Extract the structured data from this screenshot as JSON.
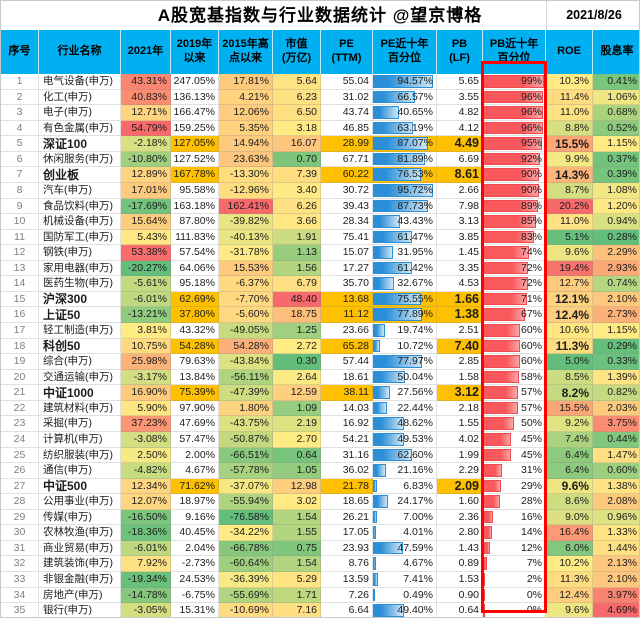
{
  "colors": {
    "header_bg": "#00B0F0",
    "index_highlight": "#FFC000",
    "scale_green": "#63BE7B",
    "scale_mid": "#FFEB84",
    "scale_red": "#F8696B",
    "pe_bar_blue": "#2B8FD8",
    "pb_bar_red": "#F9595C",
    "highlight_box_red": "#FE0000",
    "serial_gray": "#7F7F7F"
  },
  "scales": {
    "y2021": {
      "min": -20.27,
      "mid": 3.81,
      "max": 54.79
    },
    "since2015": {
      "min": -76.58,
      "mid": -34.22,
      "max": 162.41
    },
    "mcap": {
      "min": 0.3,
      "mid": 2.72,
      "max": 48.4
    },
    "roe": {
      "min": 5.0,
      "mid": 10.2,
      "max": 20.2
    },
    "div": {
      "min": 0.28,
      "mid": 1.15,
      "max": 4.69
    }
  },
  "chart_data": {
    "type": "table",
    "title": "A股宽基指数与行业数据统计 @望京博格",
    "date": "2021/8/26",
    "columns": [
      {
        "label": "序号"
      },
      {
        "label": "行业名称"
      },
      {
        "label": "2021年"
      },
      {
        "label": "2019年\n以来"
      },
      {
        "label": "2015年高\n点以来"
      },
      {
        "label": "市值\n(万亿)"
      },
      {
        "label": "PE\n(TTM)"
      },
      {
        "label": "PE近十年\n百分位"
      },
      {
        "label": "PB\n(LF)"
      },
      {
        "label": "PB近十年\n百分位"
      },
      {
        "label": "ROE"
      },
      {
        "label": "股息率"
      }
    ],
    "rows": [
      {
        "no": 1,
        "name": "电气设备(申万)",
        "y2021": 43.31,
        "since2019": 247.05,
        "since2015": 17.81,
        "mcap": 5.64,
        "pe": 55.04,
        "pe_pct": 94.57,
        "pb": 5.65,
        "pb_pct": 99,
        "roe": 10.3,
        "div": 0.41,
        "index": false,
        "pe_pct_gold": false
      },
      {
        "no": 2,
        "name": "化工(申万)",
        "y2021": 40.83,
        "since2019": 136.13,
        "since2015": 4.21,
        "mcap": 6.23,
        "pe": 31.02,
        "pe_pct": 66.57,
        "pb": 3.55,
        "pb_pct": 96,
        "roe": 11.4,
        "div": 1.06,
        "index": false,
        "pe_pct_gold": false
      },
      {
        "no": 3,
        "name": "电子(申万)",
        "y2021": 12.71,
        "since2019": 166.47,
        "since2015": 12.06,
        "mcap": 6.5,
        "pe": 43.74,
        "pe_pct": 40.65,
        "pb": 4.82,
        "pb_pct": 96,
        "roe": 11.0,
        "div": 0.68,
        "index": false,
        "pe_pct_gold": false
      },
      {
        "no": 4,
        "name": "有色金属(申万)",
        "y2021": 54.79,
        "since2019": 159.25,
        "since2015": 5.35,
        "mcap": 3.18,
        "pe": 46.85,
        "pe_pct": 63.19,
        "pb": 4.12,
        "pb_pct": 96,
        "roe": 8.8,
        "div": 0.52,
        "index": false,
        "pe_pct_gold": false
      },
      {
        "no": 5,
        "name": "深证100",
        "y2021": -2.18,
        "since2019": 127.05,
        "since2015": 14.94,
        "mcap": 16.07,
        "pe": 28.99,
        "pe_pct": 87.07,
        "pb": 4.49,
        "pb_pct": 95,
        "roe": 15.5,
        "div": 1.15,
        "index": true,
        "pe_pct_gold": true
      },
      {
        "no": 6,
        "name": "休闲服务(申万)",
        "y2021": -10.8,
        "since2019": 127.52,
        "since2015": 23.63,
        "mcap": 0.7,
        "pe": 67.71,
        "pe_pct": 81.89,
        "pb": 6.69,
        "pb_pct": 92,
        "roe": 9.9,
        "div": 0.37,
        "index": false,
        "pe_pct_gold": false
      },
      {
        "no": 7,
        "name": "创业板",
        "y2021": 12.89,
        "since2019": 167.78,
        "since2015": -13.3,
        "mcap": 7.39,
        "pe": 60.22,
        "pe_pct": 76.53,
        "pb": 8.61,
        "pb_pct": 90,
        "roe": 14.3,
        "div": 0.39,
        "index": true,
        "pe_pct_gold": true
      },
      {
        "no": 8,
        "name": "汽车(申万)",
        "y2021": 17.01,
        "since2019": 95.58,
        "since2015": -12.96,
        "mcap": 3.4,
        "pe": 30.72,
        "pe_pct": 95.72,
        "pb": 2.66,
        "pb_pct": 90,
        "roe": 8.7,
        "div": 1.08,
        "index": false,
        "pe_pct_gold": false
      },
      {
        "no": 9,
        "name": "食品饮料(申万)",
        "y2021": -17.69,
        "since2019": 163.18,
        "since2015": 162.41,
        "mcap": 6.26,
        "pe": 39.43,
        "pe_pct": 87.73,
        "pb": 7.98,
        "pb_pct": 89,
        "roe": 20.2,
        "div": 1.2,
        "index": false,
        "pe_pct_gold": false
      },
      {
        "no": 10,
        "name": "机械设备(申万)",
        "y2021": 15.64,
        "since2019": 87.8,
        "since2015": -39.82,
        "mcap": 3.66,
        "pe": 28.34,
        "pe_pct": 43.43,
        "pb": 3.13,
        "pb_pct": 85,
        "roe": 11.0,
        "div": 0.94,
        "index": false,
        "pe_pct_gold": false
      },
      {
        "no": 11,
        "name": "国防军工(申万)",
        "y2021": 5.43,
        "since2019": 111.83,
        "since2015": -40.13,
        "mcap": 1.91,
        "pe": 75.41,
        "pe_pct": 61.47,
        "pb": 3.85,
        "pb_pct": 83,
        "roe": 5.1,
        "div": 0.28,
        "index": false,
        "pe_pct_gold": false
      },
      {
        "no": 12,
        "name": "钢铁(申万)",
        "y2021": 53.38,
        "since2019": 57.54,
        "since2015": -31.78,
        "mcap": 1.13,
        "pe": 15.07,
        "pe_pct": 31.95,
        "pb": 1.45,
        "pb_pct": 74,
        "roe": 9.6,
        "div": 2.29,
        "index": false,
        "pe_pct_gold": false
      },
      {
        "no": 13,
        "name": "家用电器(申万)",
        "y2021": -20.27,
        "since2019": 64.06,
        "since2015": 15.53,
        "mcap": 1.56,
        "pe": 17.27,
        "pe_pct": 61.42,
        "pb": 3.35,
        "pb_pct": 72,
        "roe": 19.4,
        "div": 2.93,
        "index": false,
        "pe_pct_gold": false
      },
      {
        "no": 14,
        "name": "医药生物(申万)",
        "y2021": -5.61,
        "since2019": 95.18,
        "since2015": -6.37,
        "mcap": 6.79,
        "pe": 35.7,
        "pe_pct": 32.67,
        "pb": 4.53,
        "pb_pct": 72,
        "roe": 12.7,
        "div": 0.74,
        "index": false,
        "pe_pct_gold": false
      },
      {
        "no": 15,
        "name": "沪深300",
        "y2021": -6.01,
        "since2019": 62.69,
        "since2015": -7.7,
        "mcap": 48.4,
        "pe": 13.68,
        "pe_pct": 75.55,
        "pb": 1.66,
        "pb_pct": 71,
        "roe": 12.1,
        "div": 2.1,
        "index": true,
        "pe_pct_gold": true
      },
      {
        "no": 16,
        "name": "上证50",
        "y2021": -13.21,
        "since2019": 37.8,
        "since2015": -5.6,
        "mcap": 18.75,
        "pe": 11.12,
        "pe_pct": 77.89,
        "pb": 1.38,
        "pb_pct": 67,
        "roe": 12.4,
        "div": 2.73,
        "index": true,
        "pe_pct_gold": true
      },
      {
        "no": 17,
        "name": "轻工制造(申万)",
        "y2021": 3.81,
        "since2019": 43.32,
        "since2015": -49.05,
        "mcap": 1.25,
        "pe": 23.66,
        "pe_pct": 19.74,
        "pb": 2.51,
        "pb_pct": 60,
        "roe": 10.6,
        "div": 1.15,
        "index": false,
        "pe_pct_gold": false
      },
      {
        "no": 18,
        "name": "科创50",
        "y2021": 10.75,
        "since2019": 54.28,
        "since2015": 54.28,
        "mcap": 2.72,
        "pe": 65.28,
        "pe_pct": 10.72,
        "pb": 7.4,
        "pb_pct": 60,
        "roe": 11.3,
        "div": 0.29,
        "index": true,
        "pe_pct_gold": false
      },
      {
        "no": 19,
        "name": "综合(申万)",
        "y2021": 25.98,
        "since2019": 79.63,
        "since2015": -43.84,
        "mcap": 0.3,
        "pe": 57.44,
        "pe_pct": 77.97,
        "pb": 2.85,
        "pb_pct": 60,
        "roe": 5.0,
        "div": 0.33,
        "index": false,
        "pe_pct_gold": false
      },
      {
        "no": 20,
        "name": "交通运输(申万)",
        "y2021": -3.17,
        "since2019": 13.84,
        "since2015": -56.11,
        "mcap": 2.64,
        "pe": 18.61,
        "pe_pct": 50.04,
        "pb": 1.58,
        "pb_pct": 58,
        "roe": 8.5,
        "div": 1.39,
        "index": false,
        "pe_pct_gold": false
      },
      {
        "no": 21,
        "name": "中证1000",
        "y2021": 16.9,
        "since2019": 75.39,
        "since2015": -47.39,
        "mcap": 12.59,
        "pe": 38.11,
        "pe_pct": 27.56,
        "pb": 3.12,
        "pb_pct": 57,
        "roe": 8.2,
        "div": 0.82,
        "index": true,
        "pe_pct_gold": false
      },
      {
        "no": 22,
        "name": "建筑材料(申万)",
        "y2021": 5.9,
        "since2019": 97.9,
        "since2015": 1.8,
        "mcap": 1.09,
        "pe": 14.03,
        "pe_pct": 22.44,
        "pb": 2.18,
        "pb_pct": 57,
        "roe": 15.5,
        "div": 2.03,
        "index": false,
        "pe_pct_gold": false
      },
      {
        "no": 23,
        "name": "采掘(申万)",
        "y2021": 37.23,
        "since2019": 47.69,
        "since2015": -43.75,
        "mcap": 2.19,
        "pe": 16.92,
        "pe_pct": 48.62,
        "pb": 1.55,
        "pb_pct": 50,
        "roe": 9.2,
        "div": 3.75,
        "index": false,
        "pe_pct_gold": false
      },
      {
        "no": 24,
        "name": "计算机(申万)",
        "y2021": -3.08,
        "since2019": 57.47,
        "since2015": -50.87,
        "mcap": 2.7,
        "pe": 54.21,
        "pe_pct": 49.53,
        "pb": 4.02,
        "pb_pct": 45,
        "roe": 7.4,
        "div": 0.44,
        "index": false,
        "pe_pct_gold": false
      },
      {
        "no": 25,
        "name": "纺织服装(申万)",
        "y2021": 2.5,
        "since2019": 2.0,
        "since2015": -66.51,
        "mcap": 0.64,
        "pe": 31.16,
        "pe_pct": 62.6,
        "pb": 1.99,
        "pb_pct": 45,
        "roe": 6.4,
        "div": 1.47,
        "index": false,
        "pe_pct_gold": false
      },
      {
        "no": 26,
        "name": "通信(申万)",
        "y2021": -4.82,
        "since2019": 4.67,
        "since2015": -57.78,
        "mcap": 1.05,
        "pe": 36.02,
        "pe_pct": 21.16,
        "pb": 2.29,
        "pb_pct": 31,
        "roe": 6.4,
        "div": 0.6,
        "index": false,
        "pe_pct_gold": false
      },
      {
        "no": 27,
        "name": "中证500",
        "y2021": 12.34,
        "since2019": 71.62,
        "since2015": -37.07,
        "mcap": 12.98,
        "pe": 21.78,
        "pe_pct": 6.83,
        "pb": 2.09,
        "pb_pct": 29,
        "roe": 9.6,
        "div": 1.38,
        "index": true,
        "pe_pct_gold": false
      },
      {
        "no": 28,
        "name": "公用事业(申万)",
        "y2021": 12.07,
        "since2019": 18.97,
        "since2015": -55.94,
        "mcap": 3.02,
        "pe": 18.65,
        "pe_pct": 24.17,
        "pb": 1.6,
        "pb_pct": 28,
        "roe": 8.6,
        "div": 2.08,
        "index": false,
        "pe_pct_gold": false
      },
      {
        "no": 29,
        "name": "传媒(申万)",
        "y2021": -16.5,
        "since2019": 9.16,
        "since2015": -76.58,
        "mcap": 1.54,
        "pe": 26.21,
        "pe_pct": 7.0,
        "pb": 2.36,
        "pb_pct": 16,
        "roe": 9.0,
        "div": 0.96,
        "index": false,
        "pe_pct_gold": false
      },
      {
        "no": 30,
        "name": "农林牧渔(申万)",
        "y2021": -18.36,
        "since2019": 40.45,
        "since2015": -34.22,
        "mcap": 1.55,
        "pe": 17.05,
        "pe_pct": 4.01,
        "pb": 2.8,
        "pb_pct": 14,
        "roe": 16.4,
        "div": 1.33,
        "index": false,
        "pe_pct_gold": false
      },
      {
        "no": 31,
        "name": "商业贸易(申万)",
        "y2021": -6.01,
        "since2019": 2.04,
        "since2015": -66.78,
        "mcap": 0.75,
        "pe": 23.93,
        "pe_pct": 47.59,
        "pb": 1.43,
        "pb_pct": 12,
        "roe": 6.0,
        "div": 1.44,
        "index": false,
        "pe_pct_gold": false
      },
      {
        "no": 32,
        "name": "建筑装饰(申万)",
        "y2021": 7.92,
        "since2019": -2.73,
        "since2015": -60.64,
        "mcap": 1.54,
        "pe": 8.76,
        "pe_pct": 4.67,
        "pb": 0.89,
        "pb_pct": 7,
        "roe": 10.2,
        "div": 2.13,
        "index": false,
        "pe_pct_gold": false
      },
      {
        "no": 33,
        "name": "非银金融(申万)",
        "y2021": -19.34,
        "since2019": 24.53,
        "since2015": -36.39,
        "mcap": 5.29,
        "pe": 13.59,
        "pe_pct": 7.41,
        "pb": 1.53,
        "pb_pct": 2,
        "roe": 11.3,
        "div": 2.1,
        "index": false,
        "pe_pct_gold": false
      },
      {
        "no": 34,
        "name": "房地产(申万)",
        "y2021": -14.78,
        "since2019": -6.75,
        "since2015": -55.69,
        "mcap": 1.71,
        "pe": 7.26,
        "pe_pct": 0.49,
        "pb": 0.9,
        "pb_pct": 0,
        "roe": 12.4,
        "div": 3.97,
        "index": false,
        "pe_pct_gold": false
      },
      {
        "no": 35,
        "name": "银行(申万)",
        "y2021": -3.05,
        "since2019": 15.31,
        "since2015": -10.69,
        "mcap": 7.16,
        "pe": 6.64,
        "pe_pct": 49.4,
        "pb": 0.64,
        "pb_pct": 0,
        "roe": 9.6,
        "div": 4.69,
        "index": false,
        "pe_pct_gold": false
      }
    ]
  }
}
